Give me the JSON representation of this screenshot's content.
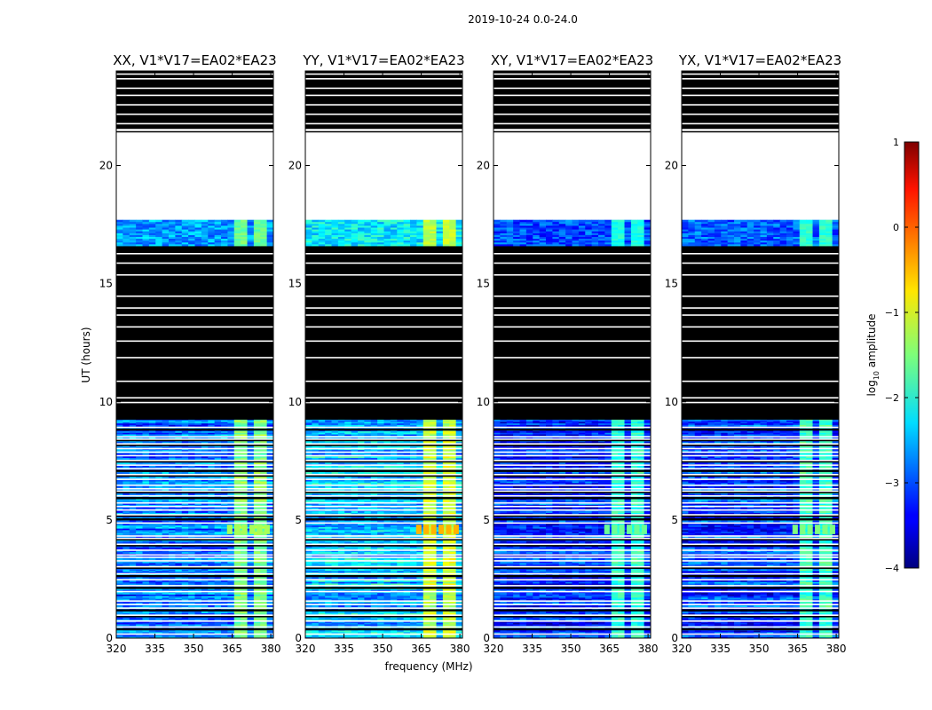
{
  "figure": {
    "suptitle": "2019-10-24 0.0-24.0"
  },
  "colorbar": {
    "label_main": "log",
    "label_sub": "10",
    "label_tail": " amplitude",
    "range": [
      -4,
      1
    ],
    "ticks": [
      "1",
      "0",
      "−1",
      "−2",
      "−3",
      "−4"
    ],
    "colormap": "jet"
  },
  "chart_data": [
    {
      "type": "heatmap",
      "title": "XX, V1*V17=EA02*EA23",
      "xlabel": "frequency (MHz)",
      "ylabel": "UT (hours)",
      "xlim": [
        320,
        381
      ],
      "ylim": [
        0,
        24
      ],
      "xticks": [
        320,
        335,
        350,
        365,
        380
      ],
      "yticks": [
        0,
        5,
        10,
        15,
        20
      ],
      "color_scale": "log10 amplitude",
      "data_blocks": [
        {
          "ut": [
            0.0,
            9.3
          ],
          "freq": [
            320,
            381
          ],
          "log10_amplitude": -2.8,
          "note": "intermittent noise, white flagged lines"
        },
        {
          "ut": [
            0.0,
            9.3
          ],
          "freq": [
            363,
            379
          ],
          "log10_amplitude": -1.6,
          "note": "bright RFI channels"
        },
        {
          "ut": [
            4.4,
            4.8
          ],
          "freq": [
            363,
            379
          ],
          "log10_amplitude": -1.3
        },
        {
          "ut": [
            9.3,
            16.6
          ],
          "freq": [
            320,
            381
          ],
          "log10_amplitude": null,
          "note": "black (zero)"
        },
        {
          "ut": [
            16.6,
            17.7
          ],
          "freq": [
            320,
            381
          ],
          "log10_amplitude": -2.6
        },
        {
          "ut": [
            17.7,
            21.4
          ],
          "freq": [
            320,
            381
          ],
          "log10_amplitude": null,
          "note": "no data (white)"
        },
        {
          "ut": [
            21.4,
            24.0
          ],
          "freq": [
            320,
            381
          ],
          "log10_amplitude": null,
          "note": "black with white flagged lines"
        }
      ]
    },
    {
      "type": "heatmap",
      "title": "YY, V1*V17=EA02*EA23",
      "xlabel": "frequency (MHz)",
      "ylabel": "",
      "xlim": [
        320,
        381
      ],
      "ylim": [
        0,
        24
      ],
      "xticks": [
        320,
        335,
        350,
        365,
        380
      ],
      "yticks": [
        0,
        5,
        10,
        15,
        20
      ],
      "color_scale": "log10 amplitude",
      "data_blocks": [
        {
          "ut": [
            0.0,
            9.3
          ],
          "freq": [
            320,
            381
          ],
          "log10_amplitude": -2.4,
          "note": "intermittent noise, white flagged lines"
        },
        {
          "ut": [
            0.0,
            9.3
          ],
          "freq": [
            363,
            379
          ],
          "log10_amplitude": -1.2,
          "note": "bright RFI channels"
        },
        {
          "ut": [
            4.4,
            4.8
          ],
          "freq": [
            363,
            379
          ],
          "log10_amplitude": -0.5
        },
        {
          "ut": [
            9.3,
            16.6
          ],
          "freq": [
            320,
            381
          ],
          "log10_amplitude": null,
          "note": "black (zero)"
        },
        {
          "ut": [
            16.6,
            17.7
          ],
          "freq": [
            320,
            381
          ],
          "log10_amplitude": -2.2
        },
        {
          "ut": [
            17.7,
            21.4
          ],
          "freq": [
            320,
            381
          ],
          "log10_amplitude": null,
          "note": "no data (white)"
        },
        {
          "ut": [
            21.4,
            24.0
          ],
          "freq": [
            320,
            381
          ],
          "log10_amplitude": null,
          "note": "black with white flagged lines"
        }
      ]
    },
    {
      "type": "heatmap",
      "title": "XY, V1*V17=EA02*EA23",
      "xlabel": "",
      "ylabel": "",
      "xlim": [
        320,
        381
      ],
      "ylim": [
        0,
        24
      ],
      "xticks": [
        320,
        335,
        350,
        365,
        380
      ],
      "yticks": [
        0,
        5,
        10,
        15,
        20
      ],
      "color_scale": "log10 amplitude",
      "data_blocks": [
        {
          "ut": [
            0.0,
            9.3
          ],
          "freq": [
            320,
            381
          ],
          "log10_amplitude": -3.2,
          "note": "intermittent noise, white flagged lines"
        },
        {
          "ut": [
            0.0,
            9.3
          ],
          "freq": [
            363,
            379
          ],
          "log10_amplitude": -2.0,
          "note": "bright RFI channels"
        },
        {
          "ut": [
            4.4,
            4.8
          ],
          "freq": [
            363,
            379
          ],
          "log10_amplitude": -1.6
        },
        {
          "ut": [
            9.3,
            16.6
          ],
          "freq": [
            320,
            381
          ],
          "log10_amplitude": null,
          "note": "black (zero)"
        },
        {
          "ut": [
            16.6,
            17.7
          ],
          "freq": [
            320,
            381
          ],
          "log10_amplitude": -3.0
        },
        {
          "ut": [
            17.7,
            21.4
          ],
          "freq": [
            320,
            381
          ],
          "log10_amplitude": null,
          "note": "no data (white)"
        },
        {
          "ut": [
            21.4,
            24.0
          ],
          "freq": [
            320,
            381
          ],
          "log10_amplitude": null,
          "note": "black with white flagged lines"
        }
      ]
    },
    {
      "type": "heatmap",
      "title": "YX, V1*V17=EA02*EA23",
      "xlabel": "",
      "ylabel": "",
      "xlim": [
        320,
        381
      ],
      "ylim": [
        0,
        24
      ],
      "xticks": [
        320,
        335,
        350,
        365,
        380
      ],
      "yticks": [
        0,
        5,
        10,
        15,
        20
      ],
      "color_scale": "log10 amplitude",
      "data_blocks": [
        {
          "ut": [
            0.0,
            9.3
          ],
          "freq": [
            320,
            381
          ],
          "log10_amplitude": -3.1,
          "note": "intermittent noise, white flagged lines"
        },
        {
          "ut": [
            0.0,
            9.3
          ],
          "freq": [
            363,
            379
          ],
          "log10_amplitude": -1.9,
          "note": "bright RFI channels"
        },
        {
          "ut": [
            4.4,
            4.8
          ],
          "freq": [
            363,
            379
          ],
          "log10_amplitude": -1.5
        },
        {
          "ut": [
            9.3,
            16.6
          ],
          "freq": [
            320,
            381
          ],
          "log10_amplitude": null,
          "note": "black (zero)"
        },
        {
          "ut": [
            16.6,
            17.7
          ],
          "freq": [
            320,
            381
          ],
          "log10_amplitude": -2.9
        },
        {
          "ut": [
            17.7,
            21.4
          ],
          "freq": [
            320,
            381
          ],
          "log10_amplitude": null,
          "note": "no data (white)"
        },
        {
          "ut": [
            21.4,
            24.0
          ],
          "freq": [
            320,
            381
          ],
          "log10_amplitude": null,
          "note": "black with white flagged lines"
        }
      ]
    }
  ]
}
